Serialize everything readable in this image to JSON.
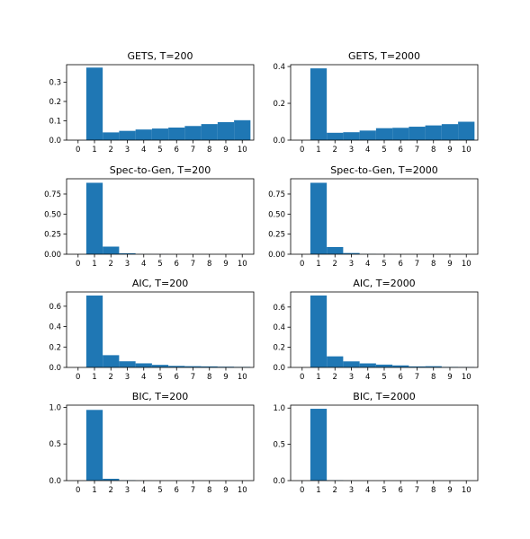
{
  "chart_data": [
    {
      "type": "bar",
      "title": "GETS, T=200",
      "x": [
        0,
        1,
        2,
        3,
        4,
        5,
        6,
        7,
        8,
        9,
        10
      ],
      "values": [
        0.0,
        0.375,
        0.04,
        0.048,
        0.055,
        0.06,
        0.065,
        0.073,
        0.083,
        0.093,
        0.103
      ],
      "xticks": [
        "0",
        "1",
        "2",
        "3",
        "4",
        "5",
        "6",
        "7",
        "8",
        "9",
        "10"
      ],
      "yticks": [
        "0.0",
        "0.1",
        "0.2",
        "0.3"
      ],
      "ytick_values": [
        0.0,
        0.1,
        0.2,
        0.3
      ],
      "ylim": [
        0,
        0.39
      ],
      "xlim": [
        -0.7,
        10.7
      ],
      "color": "#1f77b4",
      "grid": false
    },
    {
      "type": "bar",
      "title": "GETS, T=2000",
      "x": [
        0,
        1,
        2,
        3,
        4,
        5,
        6,
        7,
        8,
        9,
        10
      ],
      "values": [
        0.0,
        0.39,
        0.04,
        0.043,
        0.052,
        0.065,
        0.067,
        0.073,
        0.08,
        0.087,
        0.1
      ],
      "xticks": [
        "0",
        "1",
        "2",
        "3",
        "4",
        "5",
        "6",
        "7",
        "8",
        "9",
        "10"
      ],
      "yticks": [
        "0.0",
        "0.2",
        "0.4"
      ],
      "ytick_values": [
        0.0,
        0.2,
        0.4
      ],
      "ylim": [
        0,
        0.41
      ],
      "xlim": [
        -0.7,
        10.7
      ],
      "color": "#1f77b4",
      "grid": false
    },
    {
      "type": "bar",
      "title": "Spec-to-Gen, T=200",
      "x": [
        0,
        1,
        2,
        3,
        4,
        5,
        6,
        7,
        8,
        9,
        10
      ],
      "values": [
        0.0,
        0.89,
        0.095,
        0.012,
        0.002,
        0.001,
        0.0,
        0.0,
        0.0,
        0.0,
        0.0
      ],
      "xticks": [
        "0",
        "1",
        "2",
        "3",
        "4",
        "5",
        "6",
        "7",
        "8",
        "9",
        "10"
      ],
      "yticks": [
        "0.00",
        "0.25",
        "0.50",
        "0.75"
      ],
      "ytick_values": [
        0.0,
        0.25,
        0.5,
        0.75
      ],
      "ylim": [
        0,
        0.94
      ],
      "xlim": [
        -0.7,
        10.7
      ],
      "color": "#1f77b4",
      "grid": false
    },
    {
      "type": "bar",
      "title": "Spec-to-Gen, T=2000",
      "x": [
        0,
        1,
        2,
        3,
        4,
        5,
        6,
        7,
        8,
        9,
        10
      ],
      "values": [
        0.0,
        0.89,
        0.09,
        0.015,
        0.003,
        0.001,
        0.0,
        0.0,
        0.0,
        0.0,
        0.0
      ],
      "xticks": [
        "0",
        "1",
        "2",
        "3",
        "4",
        "5",
        "6",
        "7",
        "8",
        "9",
        "10"
      ],
      "yticks": [
        "0.00",
        "0.25",
        "0.50",
        "0.75"
      ],
      "ytick_values": [
        0.0,
        0.25,
        0.5,
        0.75
      ],
      "ylim": [
        0,
        0.94
      ],
      "xlim": [
        -0.7,
        10.7
      ],
      "color": "#1f77b4",
      "grid": false
    },
    {
      "type": "bar",
      "title": "AIC, T=200",
      "x": [
        0,
        1,
        2,
        3,
        4,
        5,
        6,
        7,
        8,
        9,
        10
      ],
      "values": [
        0.0,
        0.705,
        0.12,
        0.06,
        0.04,
        0.025,
        0.015,
        0.012,
        0.01,
        0.007,
        0.005
      ],
      "xticks": [
        "0",
        "1",
        "2",
        "3",
        "4",
        "5",
        "6",
        "7",
        "8",
        "9",
        "10"
      ],
      "yticks": [
        "0.0",
        "0.2",
        "0.4",
        "0.6"
      ],
      "ytick_values": [
        0.0,
        0.2,
        0.4,
        0.6
      ],
      "ylim": [
        0,
        0.74
      ],
      "xlim": [
        -0.7,
        10.7
      ],
      "color": "#1f77b4",
      "grid": false
    },
    {
      "type": "bar",
      "title": "AIC, T=2000",
      "x": [
        0,
        1,
        2,
        3,
        4,
        5,
        6,
        7,
        8,
        9,
        10
      ],
      "values": [
        0.0,
        0.715,
        0.11,
        0.06,
        0.04,
        0.028,
        0.02,
        0.01,
        0.012,
        0.005,
        0.004
      ],
      "xticks": [
        "0",
        "1",
        "2",
        "3",
        "4",
        "5",
        "6",
        "7",
        "8",
        "9",
        "10"
      ],
      "yticks": [
        "0.0",
        "0.2",
        "0.4",
        "0.6"
      ],
      "ytick_values": [
        0.0,
        0.2,
        0.4,
        0.6
      ],
      "ylim": [
        0,
        0.75
      ],
      "xlim": [
        -0.7,
        10.7
      ],
      "color": "#1f77b4",
      "grid": false
    },
    {
      "type": "bar",
      "title": "BIC, T=200",
      "x": [
        0,
        1,
        2,
        3,
        4,
        5,
        6,
        7,
        8,
        9,
        10
      ],
      "values": [
        0.0,
        0.965,
        0.025,
        0.005,
        0.001,
        0.0,
        0.0,
        0.0,
        0.0,
        0.0,
        0.0
      ],
      "xticks": [
        "0",
        "1",
        "2",
        "3",
        "4",
        "5",
        "6",
        "7",
        "8",
        "9",
        "10"
      ],
      "yticks": [
        "0.0",
        "0.5",
        "1.0"
      ],
      "ytick_values": [
        0.0,
        0.5,
        1.0
      ],
      "ylim": [
        0,
        1.03
      ],
      "xlim": [
        -0.7,
        10.7
      ],
      "color": "#1f77b4",
      "grid": false
    },
    {
      "type": "bar",
      "title": "BIC, T=2000",
      "x": [
        0,
        1,
        2,
        3,
        4,
        5,
        6,
        7,
        8,
        9,
        10
      ],
      "values": [
        0.0,
        0.99,
        0.005,
        0.001,
        0.0,
        0.0,
        0.0,
        0.0,
        0.0,
        0.0,
        0.0
      ],
      "xticks": [
        "0",
        "1",
        "2",
        "3",
        "4",
        "5",
        "6",
        "7",
        "8",
        "9",
        "10"
      ],
      "yticks": [
        "0.0",
        "0.5",
        "1.0"
      ],
      "ytick_values": [
        0.0,
        0.5,
        1.0
      ],
      "ylim": [
        0,
        1.04
      ],
      "xlim": [
        -0.7,
        10.7
      ],
      "color": "#1f77b4",
      "grid": false
    }
  ]
}
